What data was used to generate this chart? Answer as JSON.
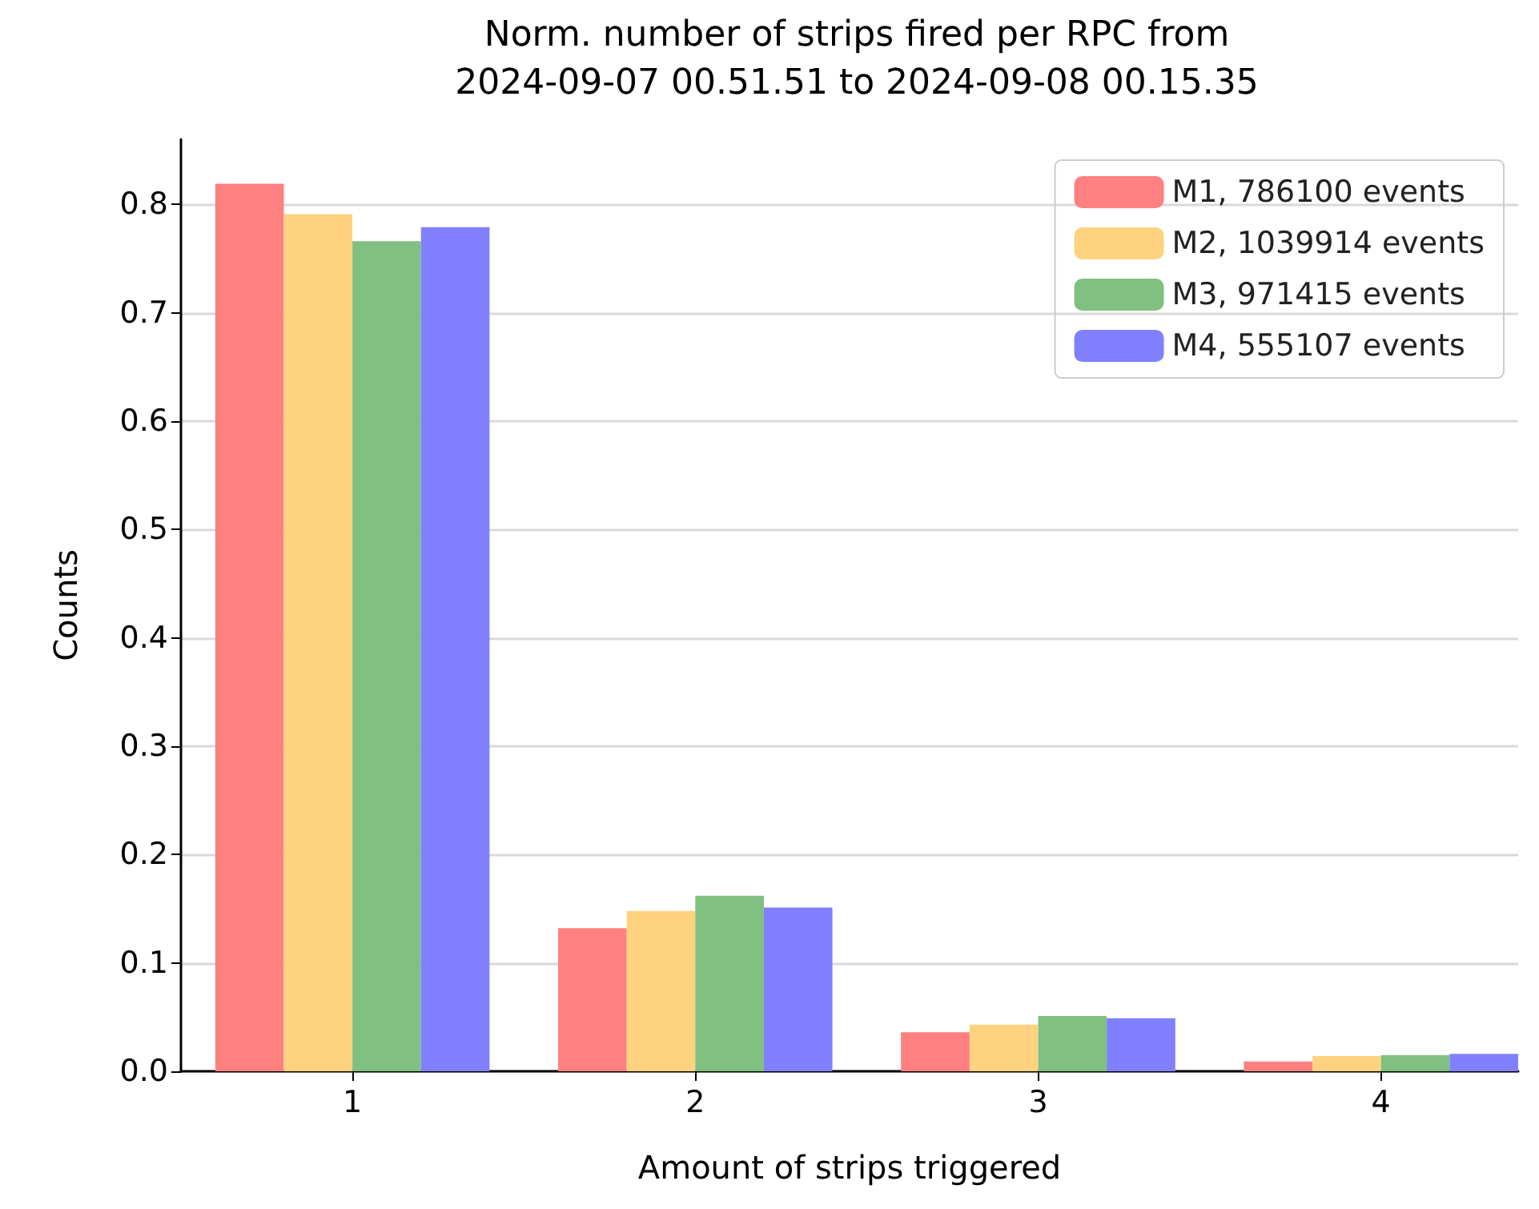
{
  "chart_data": {
    "type": "bar",
    "title": "Norm. number of strips fired per RPC from\n2024-09-07 00.51.51 to 2024-09-08 00.15.35",
    "xlabel": "Amount of strips triggered",
    "ylabel": "Counts",
    "x": [
      1,
      2,
      3,
      4
    ],
    "xlim": [
      0.5,
      4.4
    ],
    "xticks": [
      1,
      2,
      3,
      4
    ],
    "ylim": [
      0,
      0.86
    ],
    "yticks": [
      {
        "value": 0,
        "label": "0.0"
      },
      0.1,
      0.2,
      0.3,
      0.4,
      0.5,
      0.6,
      0.7,
      0.8
    ],
    "series": [
      {
        "name": "M1, 786100 events",
        "color": "#ff8080",
        "values": [
          0.819,
          0.132,
          0.036,
          0.009
        ]
      },
      {
        "name": "M2, 1039914 events",
        "color": "#ffd280",
        "values": [
          0.791,
          0.148,
          0.043,
          0.014
        ]
      },
      {
        "name": "M3, 971415 events",
        "color": "#80c080",
        "values": [
          0.766,
          0.162,
          0.051,
          0.015
        ]
      },
      {
        "name": "M4, 555107 events",
        "color": "#8080ff",
        "values": [
          0.779,
          0.151,
          0.049,
          0.016
        ]
      }
    ],
    "grid": "y",
    "legend": "top right"
  }
}
